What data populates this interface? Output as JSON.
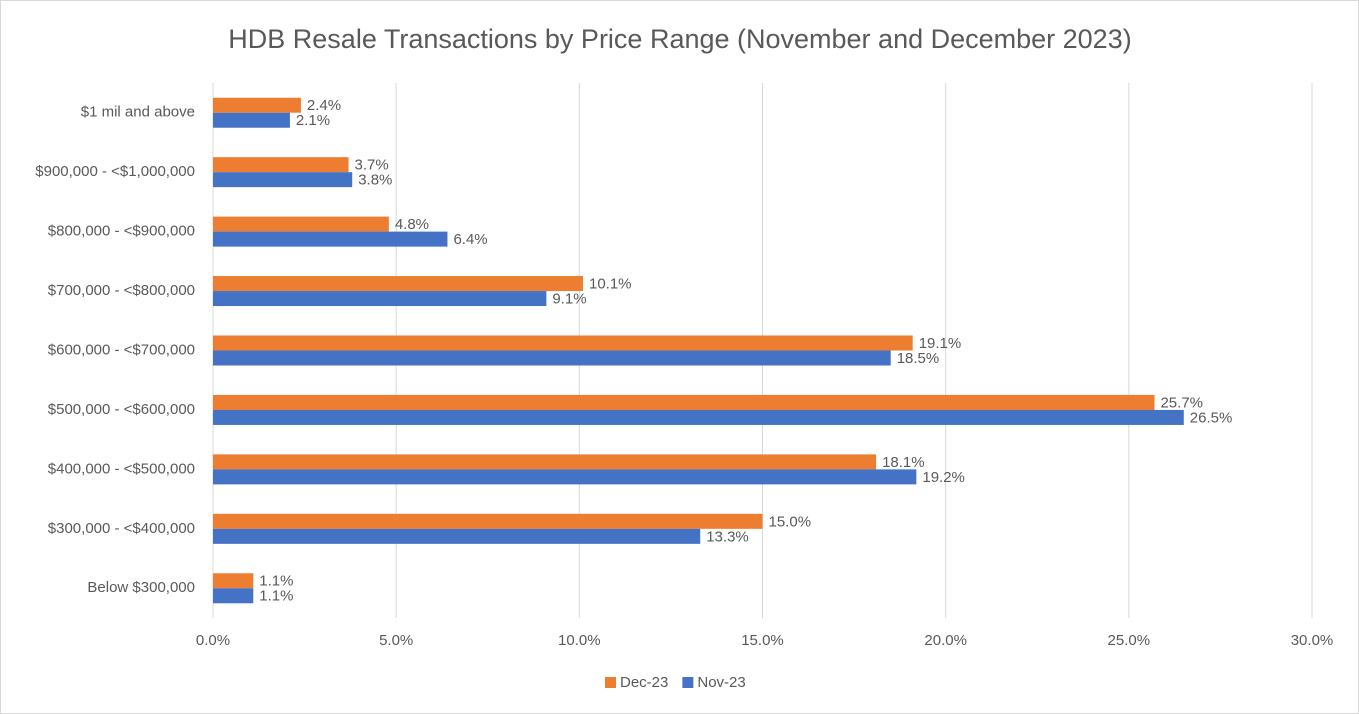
{
  "chart_data": {
    "type": "bar",
    "orientation": "horizontal",
    "title": "HDB Resale Transactions by Price Range (November and December 2023)",
    "categories": [
      "$1 mil and above",
      "$900,000 - <$1,000,000",
      "$800,000 - <$900,000",
      "$700,000 - <$800,000",
      "$600,000 - <$700,000",
      "$500,000 - <$600,000",
      "$400,000 - <$500,000",
      "$300,000 - <$400,000",
      "Below $300,000"
    ],
    "series": [
      {
        "name": "Dec-23",
        "color": "#ed7d31",
        "values": [
          2.4,
          3.7,
          4.8,
          10.1,
          19.1,
          25.7,
          18.1,
          15.0,
          1.1
        ],
        "value_labels": [
          "2.4%",
          "3.7%",
          "4.8%",
          "10.1%",
          "19.1%",
          "25.7%",
          "18.1%",
          "15.0%",
          "1.1%"
        ]
      },
      {
        "name": "Nov-23",
        "color": "#4472c4",
        "values": [
          2.1,
          3.8,
          6.4,
          9.1,
          18.5,
          26.5,
          19.2,
          13.3,
          1.1
        ],
        "value_labels": [
          "2.1%",
          "3.8%",
          "6.4%",
          "9.1%",
          "18.5%",
          "26.5%",
          "19.2%",
          "13.3%",
          "1.1%"
        ]
      }
    ],
    "xlim": [
      0,
      30
    ],
    "xticks": [
      {
        "value": 0,
        "label": "0.0%"
      },
      {
        "value": 5,
        "label": "5.0%"
      },
      {
        "value": 10,
        "label": "10.0%"
      },
      {
        "value": 15,
        "label": "15.0%"
      },
      {
        "value": 20,
        "label": "20.0%"
      },
      {
        "value": 25,
        "label": "25.0%"
      },
      {
        "value": 30,
        "label": "30.0%"
      }
    ],
    "grid": true,
    "legend": "bottom"
  }
}
